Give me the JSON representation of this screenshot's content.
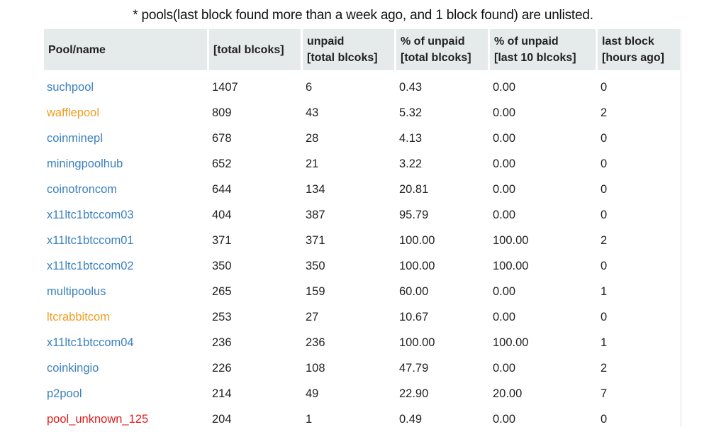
{
  "note": "* pools(last block found more than a week ago, and 1 block found) are unlisted.",
  "colors": {
    "link_blue": "#3a80bf",
    "link_orange": "#f29c1f",
    "link_red": "#e21b1b",
    "header_bg": "#e5eaea"
  },
  "table": {
    "headers": [
      [
        "Pool/name"
      ],
      [
        "[total blcoks]"
      ],
      [
        "unpaid",
        "[total blcoks]"
      ],
      [
        "% of unpaid",
        "[total blcoks]"
      ],
      [
        "% of unpaid",
        "[last 10 blcoks]"
      ],
      [
        "last block",
        "[hours ago]"
      ]
    ],
    "rows": [
      {
        "name": "suchpool",
        "color": "blue",
        "total": "1407",
        "unpaid": "6",
        "pct_total": "0.43",
        "pct_last10": "0.00",
        "hours": "0"
      },
      {
        "name": "wafflepool",
        "color": "orange",
        "total": "809",
        "unpaid": "43",
        "pct_total": "5.32",
        "pct_last10": "0.00",
        "hours": "2"
      },
      {
        "name": "coinminepl",
        "color": "blue",
        "total": "678",
        "unpaid": "28",
        "pct_total": "4.13",
        "pct_last10": "0.00",
        "hours": "0"
      },
      {
        "name": "miningpoolhub",
        "color": "blue",
        "total": "652",
        "unpaid": "21",
        "pct_total": "3.22",
        "pct_last10": "0.00",
        "hours": "0"
      },
      {
        "name": "coinotroncom",
        "color": "blue",
        "total": "644",
        "unpaid": "134",
        "pct_total": "20.81",
        "pct_last10": "0.00",
        "hours": "0"
      },
      {
        "name": "x11ltc1btccom03",
        "color": "blue",
        "total": "404",
        "unpaid": "387",
        "pct_total": "95.79",
        "pct_last10": "0.00",
        "hours": "0"
      },
      {
        "name": "x11ltc1btccom01",
        "color": "blue",
        "total": "371",
        "unpaid": "371",
        "pct_total": "100.00",
        "pct_last10": "100.00",
        "hours": "2"
      },
      {
        "name": "x11ltc1btccom02",
        "color": "blue",
        "total": "350",
        "unpaid": "350",
        "pct_total": "100.00",
        "pct_last10": "100.00",
        "hours": "0"
      },
      {
        "name": "multipoolus",
        "color": "blue",
        "total": "265",
        "unpaid": "159",
        "pct_total": "60.00",
        "pct_last10": "0.00",
        "hours": "1"
      },
      {
        "name": "ltcrabbitcom",
        "color": "orange",
        "total": "253",
        "unpaid": "27",
        "pct_total": "10.67",
        "pct_last10": "0.00",
        "hours": "0"
      },
      {
        "name": "x11ltc1btccom04",
        "color": "blue",
        "total": "236",
        "unpaid": "236",
        "pct_total": "100.00",
        "pct_last10": "100.00",
        "hours": "1"
      },
      {
        "name": "coinkingio",
        "color": "blue",
        "total": "226",
        "unpaid": "108",
        "pct_total": "47.79",
        "pct_last10": "0.00",
        "hours": "2"
      },
      {
        "name": "p2pool",
        "color": "blue",
        "total": "214",
        "unpaid": "49",
        "pct_total": "22.90",
        "pct_last10": "20.00",
        "hours": "7"
      },
      {
        "name": "pool_unknown_125",
        "color": "red",
        "total": "204",
        "unpaid": "1",
        "pct_total": "0.49",
        "pct_last10": "0.00",
        "hours": "0"
      }
    ]
  }
}
